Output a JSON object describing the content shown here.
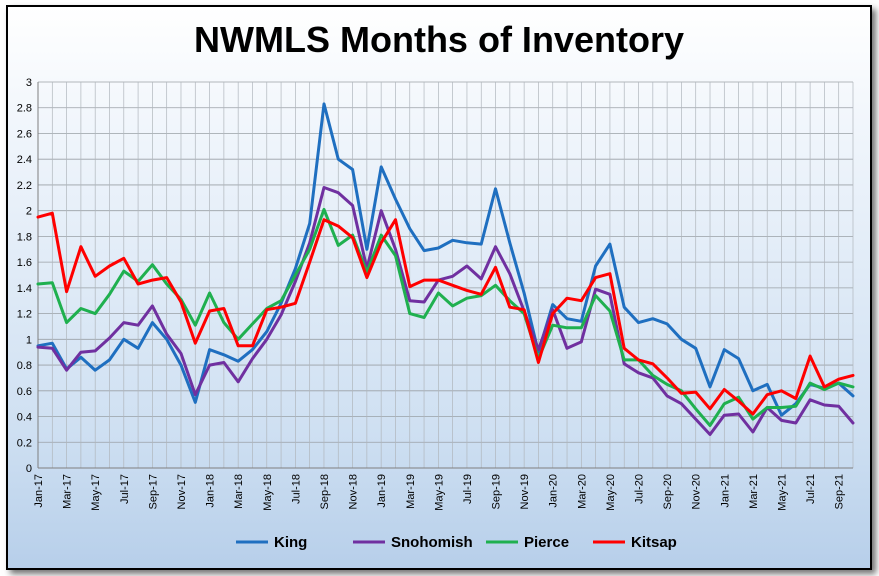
{
  "chart_data": {
    "type": "line",
    "title": "NWMLS Months of Inventory",
    "xlabel": "",
    "ylabel": "",
    "ylim": [
      0,
      3
    ],
    "yticks": [
      "0",
      "0.2",
      "0.4",
      "0.6",
      "0.8",
      "1",
      "1.2",
      "1.4",
      "1.6",
      "1.8",
      "2",
      "2.2",
      "2.4",
      "2.6",
      "2.8",
      "3"
    ],
    "grid": true,
    "legend": "bottom",
    "x": [
      "Jan-17",
      "Feb-17",
      "Mar-17",
      "Apr-17",
      "May-17",
      "Jun-17",
      "Jul-17",
      "Aug-17",
      "Sep-17",
      "Oct-17",
      "Nov-17",
      "Dec-17",
      "Jan-18",
      "Feb-18",
      "Mar-18",
      "Apr-18",
      "May-18",
      "Jun-18",
      "Jul-18",
      "Aug-18",
      "Sep-18",
      "Oct-18",
      "Nov-18",
      "Dec-18",
      "Jan-19",
      "Feb-19",
      "Mar-19",
      "Apr-19",
      "May-19",
      "Jun-19",
      "Jul-19",
      "Aug-19",
      "Sep-19",
      "Oct-19",
      "Nov-19",
      "Dec-19",
      "Jan-20",
      "Feb-20",
      "Mar-20",
      "Apr-20",
      "May-20",
      "Jun-20",
      "Jul-20",
      "Aug-20",
      "Sep-20",
      "Oct-20",
      "Nov-20",
      "Dec-20",
      "Jan-21",
      "Feb-21",
      "Mar-21",
      "Apr-21",
      "May-21",
      "Jun-21",
      "Jul-21",
      "Aug-21",
      "Sep-21",
      "Oct-21"
    ],
    "tick_labels": [
      "Jan-17",
      "Mar-17",
      "May-17",
      "Jul-17",
      "Sep-17",
      "Nov-17",
      "Jan-18",
      "Mar-18",
      "May-18",
      "Jul-18",
      "Sep-18",
      "Nov-18",
      "Jan-19",
      "Mar-19",
      "May-19",
      "Jul-19",
      "Sep-19",
      "Nov-19",
      "Jan-20",
      "Mar-20",
      "May-20",
      "Jul-20",
      "Sep-20",
      "Nov-20",
      "Jan-21",
      "Mar-21",
      "May-21",
      "Jul-21",
      "Sep-21"
    ],
    "series": [
      {
        "name": "King",
        "color": "#1f6fc0",
        "values": [
          0.95,
          0.97,
          0.77,
          0.86,
          0.76,
          0.84,
          1.0,
          0.93,
          1.13,
          1.0,
          0.8,
          0.51,
          0.92,
          0.88,
          0.83,
          0.92,
          1.06,
          1.28,
          1.55,
          1.9,
          2.83,
          2.4,
          2.32,
          1.7,
          2.34,
          2.09,
          1.86,
          1.69,
          1.71,
          1.77,
          1.75,
          1.74,
          2.17,
          1.75,
          1.36,
          0.9,
          1.27,
          1.16,
          1.14,
          1.57,
          1.74,
          1.25,
          1.13,
          1.16,
          1.12,
          1.0,
          0.93,
          0.63,
          0.92,
          0.85,
          0.6,
          0.65,
          0.41,
          0.5,
          0.65,
          0.62,
          0.66,
          0.56
        ]
      },
      {
        "name": "Snohomish",
        "color": "#7030a0",
        "values": [
          0.94,
          0.93,
          0.76,
          0.9,
          0.91,
          1.01,
          1.13,
          1.11,
          1.26,
          1.04,
          0.89,
          0.57,
          0.8,
          0.82,
          0.67,
          0.85,
          1.0,
          1.19,
          1.45,
          1.75,
          2.18,
          2.14,
          2.04,
          1.55,
          2.0,
          1.7,
          1.3,
          1.29,
          1.46,
          1.49,
          1.57,
          1.47,
          1.72,
          1.51,
          1.22,
          0.92,
          1.23,
          0.93,
          0.98,
          1.39,
          1.35,
          0.81,
          0.74,
          0.7,
          0.56,
          0.5,
          0.38,
          0.26,
          0.41,
          0.42,
          0.28,
          0.47,
          0.37,
          0.35,
          0.53,
          0.49,
          0.48,
          0.35
        ]
      },
      {
        "name": "Pierce",
        "color": "#1fb04f",
        "values": [
          1.43,
          1.44,
          1.13,
          1.24,
          1.2,
          1.35,
          1.53,
          1.45,
          1.58,
          1.43,
          1.31,
          1.11,
          1.36,
          1.13,
          1.0,
          1.12,
          1.24,
          1.3,
          1.5,
          1.7,
          2.01,
          1.73,
          1.81,
          1.52,
          1.81,
          1.65,
          1.2,
          1.17,
          1.36,
          1.26,
          1.32,
          1.34,
          1.42,
          1.3,
          1.2,
          0.85,
          1.11,
          1.09,
          1.09,
          1.34,
          1.22,
          0.84,
          0.84,
          0.72,
          0.65,
          0.6,
          0.46,
          0.33,
          0.5,
          0.55,
          0.38,
          0.47,
          0.47,
          0.48,
          0.66,
          0.61,
          0.66,
          0.63
        ]
      },
      {
        "name": "Kitsap",
        "color": "#ff0000",
        "values": [
          1.95,
          1.98,
          1.37,
          1.72,
          1.49,
          1.57,
          1.63,
          1.43,
          1.46,
          1.48,
          1.29,
          0.97,
          1.22,
          1.24,
          0.95,
          0.95,
          1.23,
          1.25,
          1.28,
          1.6,
          1.93,
          1.88,
          1.79,
          1.48,
          1.75,
          1.93,
          1.41,
          1.46,
          1.46,
          1.42,
          1.38,
          1.35,
          1.56,
          1.25,
          1.23,
          0.82,
          1.2,
          1.32,
          1.3,
          1.48,
          1.51,
          0.93,
          0.84,
          0.81,
          0.7,
          0.58,
          0.59,
          0.46,
          0.61,
          0.52,
          0.42,
          0.57,
          0.6,
          0.54,
          0.87,
          0.63,
          0.69,
          0.72
        ]
      }
    ]
  }
}
